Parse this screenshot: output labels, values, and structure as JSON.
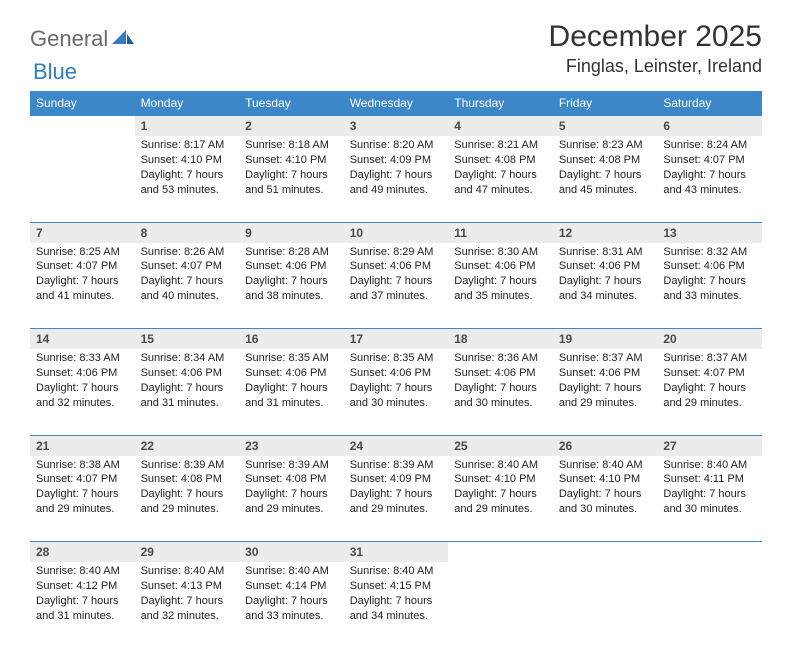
{
  "brand": {
    "part1": "General",
    "part2": "Blue"
  },
  "title": "December 2025",
  "location": "Finglas, Leinster, Ireland",
  "colors": {
    "header_bg": "#3b87c8",
    "header_text": "#ffffff",
    "daynum_bg": "#ececec",
    "daynum_text": "#4a4a4a",
    "rule": "#3b87c8",
    "body_text": "#222222",
    "logo_gray": "#6a6a6a",
    "logo_blue": "#2f7dc0"
  },
  "day_headers": [
    "Sunday",
    "Monday",
    "Tuesday",
    "Wednesday",
    "Thursday",
    "Friday",
    "Saturday"
  ],
  "weeks": [
    {
      "nums": [
        "",
        "1",
        "2",
        "3",
        "4",
        "5",
        "6"
      ],
      "cells": [
        null,
        {
          "sunrise": "8:17 AM",
          "sunset": "4:10 PM",
          "daylight": "7 hours and 53 minutes."
        },
        {
          "sunrise": "8:18 AM",
          "sunset": "4:10 PM",
          "daylight": "7 hours and 51 minutes."
        },
        {
          "sunrise": "8:20 AM",
          "sunset": "4:09 PM",
          "daylight": "7 hours and 49 minutes."
        },
        {
          "sunrise": "8:21 AM",
          "sunset": "4:08 PM",
          "daylight": "7 hours and 47 minutes."
        },
        {
          "sunrise": "8:23 AM",
          "sunset": "4:08 PM",
          "daylight": "7 hours and 45 minutes."
        },
        {
          "sunrise": "8:24 AM",
          "sunset": "4:07 PM",
          "daylight": "7 hours and 43 minutes."
        }
      ]
    },
    {
      "nums": [
        "7",
        "8",
        "9",
        "10",
        "11",
        "12",
        "13"
      ],
      "cells": [
        {
          "sunrise": "8:25 AM",
          "sunset": "4:07 PM",
          "daylight": "7 hours and 41 minutes."
        },
        {
          "sunrise": "8:26 AM",
          "sunset": "4:07 PM",
          "daylight": "7 hours and 40 minutes."
        },
        {
          "sunrise": "8:28 AM",
          "sunset": "4:06 PM",
          "daylight": "7 hours and 38 minutes."
        },
        {
          "sunrise": "8:29 AM",
          "sunset": "4:06 PM",
          "daylight": "7 hours and 37 minutes."
        },
        {
          "sunrise": "8:30 AM",
          "sunset": "4:06 PM",
          "daylight": "7 hours and 35 minutes."
        },
        {
          "sunrise": "8:31 AM",
          "sunset": "4:06 PM",
          "daylight": "7 hours and 34 minutes."
        },
        {
          "sunrise": "8:32 AM",
          "sunset": "4:06 PM",
          "daylight": "7 hours and 33 minutes."
        }
      ]
    },
    {
      "nums": [
        "14",
        "15",
        "16",
        "17",
        "18",
        "19",
        "20"
      ],
      "cells": [
        {
          "sunrise": "8:33 AM",
          "sunset": "4:06 PM",
          "daylight": "7 hours and 32 minutes."
        },
        {
          "sunrise": "8:34 AM",
          "sunset": "4:06 PM",
          "daylight": "7 hours and 31 minutes."
        },
        {
          "sunrise": "8:35 AM",
          "sunset": "4:06 PM",
          "daylight": "7 hours and 31 minutes."
        },
        {
          "sunrise": "8:35 AM",
          "sunset": "4:06 PM",
          "daylight": "7 hours and 30 minutes."
        },
        {
          "sunrise": "8:36 AM",
          "sunset": "4:06 PM",
          "daylight": "7 hours and 30 minutes."
        },
        {
          "sunrise": "8:37 AM",
          "sunset": "4:06 PM",
          "daylight": "7 hours and 29 minutes."
        },
        {
          "sunrise": "8:37 AM",
          "sunset": "4:07 PM",
          "daylight": "7 hours and 29 minutes."
        }
      ]
    },
    {
      "nums": [
        "21",
        "22",
        "23",
        "24",
        "25",
        "26",
        "27"
      ],
      "cells": [
        {
          "sunrise": "8:38 AM",
          "sunset": "4:07 PM",
          "daylight": "7 hours and 29 minutes."
        },
        {
          "sunrise": "8:39 AM",
          "sunset": "4:08 PM",
          "daylight": "7 hours and 29 minutes."
        },
        {
          "sunrise": "8:39 AM",
          "sunset": "4:08 PM",
          "daylight": "7 hours and 29 minutes."
        },
        {
          "sunrise": "8:39 AM",
          "sunset": "4:09 PM",
          "daylight": "7 hours and 29 minutes."
        },
        {
          "sunrise": "8:40 AM",
          "sunset": "4:10 PM",
          "daylight": "7 hours and 29 minutes."
        },
        {
          "sunrise": "8:40 AM",
          "sunset": "4:10 PM",
          "daylight": "7 hours and 30 minutes."
        },
        {
          "sunrise": "8:40 AM",
          "sunset": "4:11 PM",
          "daylight": "7 hours and 30 minutes."
        }
      ]
    },
    {
      "nums": [
        "28",
        "29",
        "30",
        "31",
        "",
        "",
        ""
      ],
      "cells": [
        {
          "sunrise": "8:40 AM",
          "sunset": "4:12 PM",
          "daylight": "7 hours and 31 minutes."
        },
        {
          "sunrise": "8:40 AM",
          "sunset": "4:13 PM",
          "daylight": "7 hours and 32 minutes."
        },
        {
          "sunrise": "8:40 AM",
          "sunset": "4:14 PM",
          "daylight": "7 hours and 33 minutes."
        },
        {
          "sunrise": "8:40 AM",
          "sunset": "4:15 PM",
          "daylight": "7 hours and 34 minutes."
        },
        null,
        null,
        null
      ]
    }
  ],
  "labels": {
    "sunrise": "Sunrise:",
    "sunset": "Sunset:",
    "daylight": "Daylight:"
  }
}
